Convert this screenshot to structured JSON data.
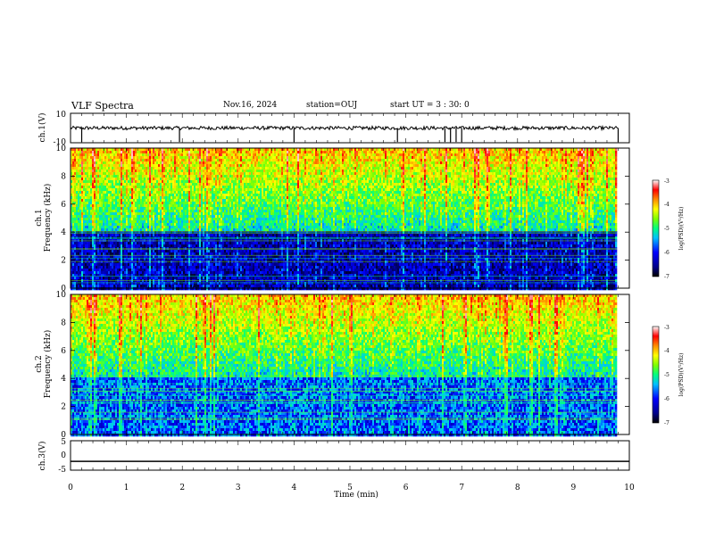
{
  "header": {
    "title": "VLF Spectra",
    "date": "Nov.16, 2024",
    "station": "station=OUJ",
    "start_ut": "start UT =  3 : 30: 0"
  },
  "chart_data": [
    {
      "type": "line",
      "panel": "ch1-waveform",
      "ylabel": "ch.1(V)",
      "ylim": [
        -10,
        10
      ],
      "y_ticks": [
        "10",
        "-10"
      ],
      "x_range_min": [
        0,
        9.8
      ],
      "baseline_v": 0,
      "spikes_min": [
        0.2,
        1.95,
        4.0,
        5.85,
        6.7,
        6.8,
        6.9,
        7.0,
        9.8
      ]
    },
    {
      "type": "heatmap",
      "panel": "ch1-spectrogram",
      "ylabel_line1": "ch.1",
      "ylabel_line2": "Frequency (kHz)",
      "ylim": [
        0,
        10
      ],
      "y_ticks": [
        "0",
        "2",
        "4",
        "6",
        "8",
        "10"
      ],
      "colorbar_label": "log(PSD)(V²/Hz)",
      "colorbar_range": [
        -7,
        -3
      ],
      "colorbar_ticks": [
        "-3",
        "-4",
        "-5",
        "-6",
        "-7"
      ]
    },
    {
      "type": "heatmap",
      "panel": "ch2-spectrogram",
      "ylabel_line1": "ch.2",
      "ylabel_line2": "Frequency (kHz)",
      "ylim": [
        0,
        10
      ],
      "y_ticks": [
        "0",
        "2",
        "4",
        "6",
        "8",
        "10"
      ],
      "colorbar_label": "log(PSD)(V²/Hz)",
      "colorbar_range": [
        -7,
        -3
      ],
      "colorbar_ticks": [
        "-3",
        "-4",
        "-5",
        "-6",
        "-7"
      ]
    },
    {
      "type": "line",
      "panel": "ch3-waveform",
      "ylabel": "ch.3(V)",
      "ylim": [
        -5,
        5
      ],
      "y_ticks": [
        "5",
        "0",
        "-5"
      ],
      "constant_value_v": -2
    }
  ],
  "xaxis": {
    "label": "Time (min)",
    "xlim": [
      0,
      10
    ],
    "ticks": [
      "0",
      "1",
      "2",
      "3",
      "4",
      "5",
      "6",
      "7",
      "8",
      "9",
      "10"
    ]
  },
  "colors": {
    "colormap": [
      "#00008b",
      "#0000ff",
      "#00bfff",
      "#00ff80",
      "#7fff00",
      "#ffff00",
      "#ff8c00",
      "#ff0000",
      "#ffc8c8",
      "#ffffff"
    ]
  }
}
